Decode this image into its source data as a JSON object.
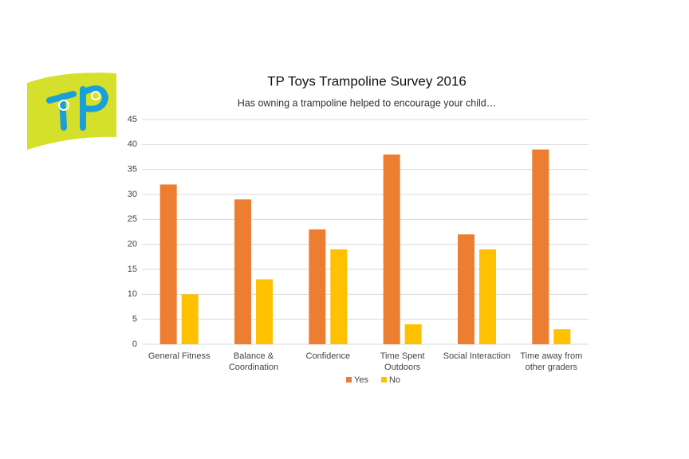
{
  "chart_data": {
    "type": "bar",
    "title": "TP Toys Trampoline Survey 2016",
    "subtitle": "Has owning a trampoline helped to encourage your child…",
    "categories": [
      "General Fitness",
      "Balance & Coordination",
      "Confidence",
      "Time Spent Outdoors",
      "Social Interaction",
      "Time away from other graders"
    ],
    "series": [
      {
        "name": "Yes",
        "color": "#ed7d31",
        "values": [
          32,
          29,
          23,
          38,
          22,
          39
        ]
      },
      {
        "name": "No",
        "color": "#ffc000",
        "values": [
          10,
          13,
          19,
          4,
          19,
          3
        ]
      }
    ],
    "ylim": [
      0,
      45
    ],
    "yticks": [
      0,
      5,
      10,
      15,
      20,
      25,
      30,
      35,
      40,
      45
    ],
    "grid": true,
    "legend": "bottom"
  }
}
